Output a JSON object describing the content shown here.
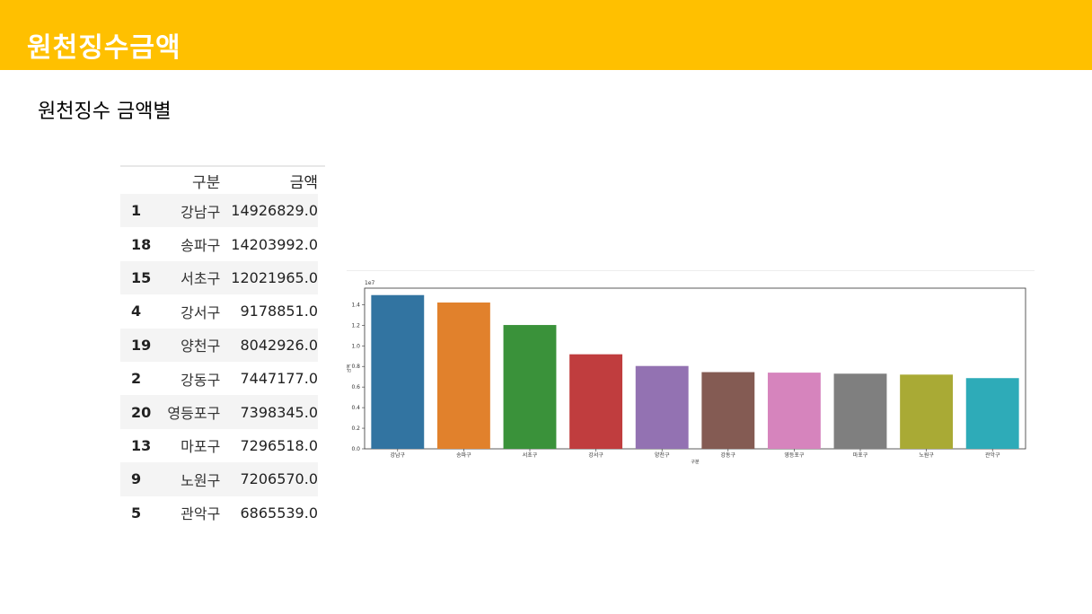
{
  "header": {
    "title": "원천징수금액",
    "bg_color": "#ffc000"
  },
  "subtitle": "원천징수 금액별",
  "table": {
    "columns": [
      "",
      "구분",
      "금액"
    ],
    "rows": [
      {
        "idx": "1",
        "gu": "강남구",
        "amount": "14926829.0"
      },
      {
        "idx": "18",
        "gu": "송파구",
        "amount": "14203992.0"
      },
      {
        "idx": "15",
        "gu": "서초구",
        "amount": "12021965.0"
      },
      {
        "idx": "4",
        "gu": "강서구",
        "amount": "9178851.0"
      },
      {
        "idx": "19",
        "gu": "양천구",
        "amount": "8042926.0"
      },
      {
        "idx": "2",
        "gu": "강동구",
        "amount": "7447177.0"
      },
      {
        "idx": "20",
        "gu": "영등포구",
        "amount": "7398345.0"
      },
      {
        "idx": "13",
        "gu": "마포구",
        "amount": "7296518.0"
      },
      {
        "idx": "9",
        "gu": "노원구",
        "amount": "7206570.0"
      },
      {
        "idx": "5",
        "gu": "관악구",
        "amount": "6865539.0"
      }
    ]
  },
  "chart_data": {
    "type": "bar",
    "categories": [
      "강남구",
      "송파구",
      "서초구",
      "강서구",
      "양천구",
      "강동구",
      "영등포구",
      "마포구",
      "노원구",
      "관악구"
    ],
    "values": [
      14926829.0,
      14203992.0,
      12021965.0,
      9178851.0,
      8042926.0,
      7447177.0,
      7398345.0,
      7296518.0,
      7206570.0,
      6865539.0
    ],
    "colors": [
      "#3274a1",
      "#e1812c",
      "#3a923a",
      "#c03d3e",
      "#9372b2",
      "#845b53",
      "#d684bd",
      "#7f7f7f",
      "#a9aa35",
      "#2eabb8"
    ],
    "offset_label": "1e7",
    "yticks": [
      "0.0",
      "0.2",
      "0.4",
      "0.6",
      "0.8",
      "1.0",
      "1.2",
      "1.4"
    ],
    "xlabel": "구분",
    "ylabel": "금액",
    "ylim": [
      0,
      1.56
    ],
    "grid": false
  }
}
